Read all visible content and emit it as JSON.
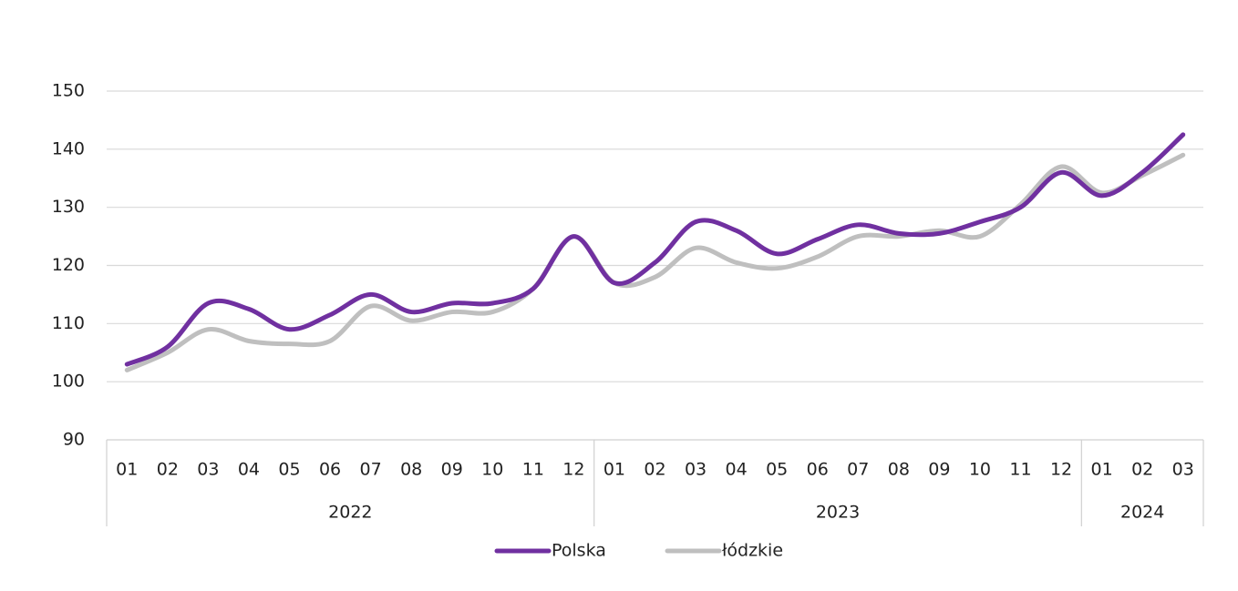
{
  "chart_data": {
    "type": "line",
    "categories": [
      "01",
      "02",
      "03",
      "04",
      "05",
      "06",
      "07",
      "08",
      "09",
      "10",
      "11",
      "12",
      "01",
      "02",
      "03",
      "04",
      "05",
      "06",
      "07",
      "08",
      "09",
      "10",
      "11",
      "12",
      "01",
      "02",
      "03"
    ],
    "groups": [
      {
        "label": "2022",
        "count": 12
      },
      {
        "label": "2023",
        "count": 12
      },
      {
        "label": "2024",
        "count": 3
      }
    ],
    "series": [
      {
        "name": "Polska",
        "color": "#7030a0",
        "values": [
          103,
          106,
          113.5,
          112.5,
          109,
          111.5,
          115,
          112,
          113.5,
          113.5,
          116,
          125,
          117,
          120.5,
          127.5,
          126,
          122,
          124.5,
          127,
          125.5,
          125.5,
          127.5,
          130,
          136,
          132,
          136,
          142.5
        ]
      },
      {
        "name": "łódzkie",
        "color": "#bfbfbf",
        "values": [
          102,
          105,
          109,
          107,
          106.5,
          107,
          113,
          110.5,
          112,
          112,
          116,
          125,
          117,
          118,
          123,
          120.5,
          119.5,
          121.5,
          125,
          125,
          126,
          125,
          130.5,
          137,
          132.5,
          135.5,
          139
        ]
      }
    ],
    "ylim": [
      90,
      150
    ],
    "yticks": [
      90,
      100,
      110,
      120,
      130,
      140,
      150
    ],
    "grid": true,
    "legend": "bottom",
    "smooth": true
  }
}
